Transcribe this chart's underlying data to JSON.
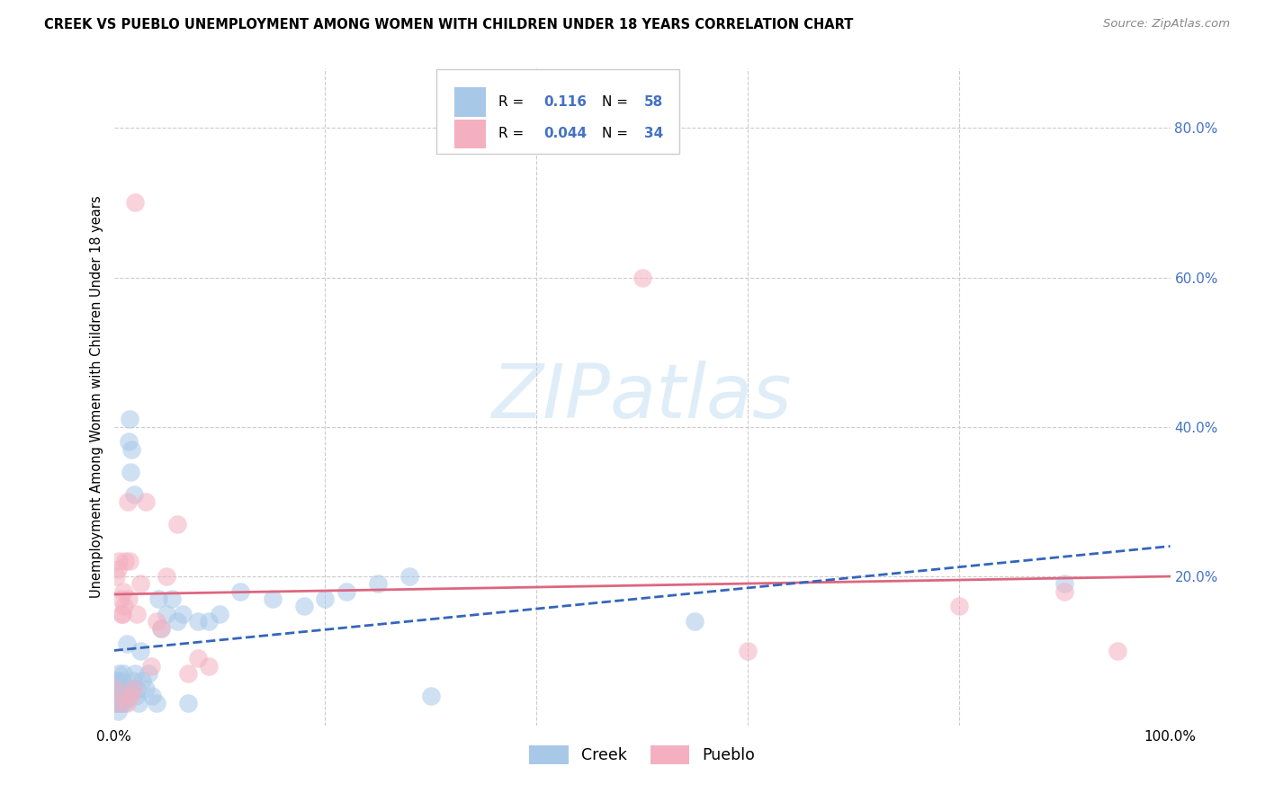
{
  "title": "CREEK VS PUEBLO UNEMPLOYMENT AMONG WOMEN WITH CHILDREN UNDER 18 YEARS CORRELATION CHART",
  "source": "Source: ZipAtlas.com",
  "ylabel": "Unemployment Among Women with Children Under 18 years",
  "creek_R": 0.116,
  "creek_N": 58,
  "pueblo_R": 0.044,
  "pueblo_N": 34,
  "creek_scatter_color": "#a8c8e8",
  "pueblo_scatter_color": "#f4b0c0",
  "creek_line_color": "#3366bb",
  "pueblo_line_color": "#dd6680",
  "background_color": "#ffffff",
  "grid_color": "#cccccc",
  "right_tick_color": "#4472c4",
  "xlim": [
    0,
    1.0
  ],
  "ylim": [
    0,
    0.88
  ],
  "right_yticks": [
    0.2,
    0.4,
    0.6,
    0.8
  ],
  "right_ytick_labels": [
    "20.0%",
    "40.0%",
    "60.0%",
    "80.0%"
  ],
  "xtick_positions": [
    0.0,
    1.0
  ],
  "xtick_labels": [
    "0.0%",
    "100.0%"
  ],
  "creek_x": [
    0.001,
    0.002,
    0.002,
    0.003,
    0.003,
    0.004,
    0.004,
    0.005,
    0.005,
    0.006,
    0.006,
    0.007,
    0.007,
    0.008,
    0.008,
    0.009,
    0.009,
    0.01,
    0.011,
    0.012,
    0.013,
    0.014,
    0.015,
    0.016,
    0.016,
    0.017,
    0.018,
    0.019,
    0.02,
    0.021,
    0.022,
    0.023,
    0.025,
    0.027,
    0.03,
    0.033,
    0.036,
    0.04,
    0.042,
    0.045,
    0.05,
    0.055,
    0.06,
    0.065,
    0.07,
    0.08,
    0.09,
    0.1,
    0.12,
    0.15,
    0.18,
    0.2,
    0.22,
    0.25,
    0.28,
    0.3,
    0.55,
    0.9
  ],
  "creek_y": [
    0.03,
    0.04,
    0.06,
    0.03,
    0.05,
    0.02,
    0.06,
    0.04,
    0.07,
    0.03,
    0.05,
    0.04,
    0.06,
    0.03,
    0.05,
    0.04,
    0.07,
    0.03,
    0.05,
    0.11,
    0.04,
    0.38,
    0.41,
    0.05,
    0.34,
    0.37,
    0.06,
    0.31,
    0.07,
    0.04,
    0.05,
    0.03,
    0.1,
    0.06,
    0.05,
    0.07,
    0.04,
    0.03,
    0.17,
    0.13,
    0.15,
    0.17,
    0.14,
    0.15,
    0.03,
    0.14,
    0.14,
    0.15,
    0.18,
    0.17,
    0.16,
    0.17,
    0.18,
    0.19,
    0.2,
    0.04,
    0.14,
    0.19
  ],
  "pueblo_x": [
    0.001,
    0.002,
    0.003,
    0.004,
    0.005,
    0.006,
    0.007,
    0.008,
    0.009,
    0.01,
    0.011,
    0.012,
    0.013,
    0.014,
    0.015,
    0.016,
    0.018,
    0.02,
    0.022,
    0.025,
    0.03,
    0.035,
    0.04,
    0.045,
    0.05,
    0.06,
    0.07,
    0.08,
    0.09,
    0.5,
    0.6,
    0.8,
    0.9,
    0.95
  ],
  "pueblo_y": [
    0.05,
    0.2,
    0.03,
    0.21,
    0.22,
    0.17,
    0.15,
    0.15,
    0.18,
    0.16,
    0.22,
    0.03,
    0.3,
    0.17,
    0.22,
    0.04,
    0.05,
    0.7,
    0.15,
    0.19,
    0.3,
    0.08,
    0.14,
    0.13,
    0.2,
    0.27,
    0.07,
    0.09,
    0.08,
    0.6,
    0.1,
    0.16,
    0.18,
    0.1
  ]
}
